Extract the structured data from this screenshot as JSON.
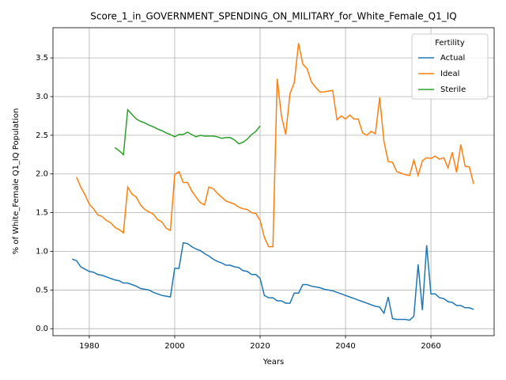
{
  "chart_data": {
    "type": "line",
    "title": "Score_1_in_GOVERNMENT_SPENDING_ON_MILITARY_for_White_Female_Q1_IQ",
    "xlabel": "Years",
    "ylabel": "% of White_Female Q1_IQ Population",
    "legend_title": "Fertility",
    "legend": "upper right",
    "grid": true,
    "xlim": [
      1971.5,
      2074.8
    ],
    "ylim": [
      -0.09,
      3.89
    ],
    "xticks": [
      1980,
      2000,
      2020,
      2040,
      2060
    ],
    "yticks": [
      {
        "value": 0,
        "label": "0.0"
      },
      0.5,
      {
        "value": 1,
        "label": "1.0"
      },
      1.5,
      {
        "value": 2,
        "label": "2.0"
      },
      2.5,
      {
        "value": 3,
        "label": "3.0"
      },
      3.5
    ],
    "x": [
      1976,
      1977,
      1978,
      1979,
      1980,
      1981,
      1982,
      1983,
      1984,
      1985,
      1986,
      1987,
      1988,
      1989,
      1990,
      1991,
      1992,
      1993,
      1994,
      1995,
      1996,
      1997,
      1998,
      1999,
      2000,
      2001,
      2002,
      2003,
      2004,
      2005,
      2006,
      2007,
      2008,
      2009,
      2010,
      2011,
      2012,
      2013,
      2014,
      2015,
      2016,
      2017,
      2018,
      2019,
      2020,
      2021,
      2022,
      2023,
      2024,
      2025,
      2026,
      2027,
      2028,
      2029,
      2030,
      2031,
      2032,
      2033,
      2034,
      2035,
      2036,
      2037,
      2038,
      2039,
      2040,
      2041,
      2042,
      2043,
      2044,
      2045,
      2046,
      2047,
      2048,
      2049,
      2050,
      2051,
      2052,
      2053,
      2054,
      2055,
      2056,
      2057,
      2058,
      2059,
      2060,
      2061,
      2062,
      2063,
      2064,
      2065,
      2066,
      2067,
      2068,
      2069,
      2070
    ],
    "series": [
      {
        "name": "Actual",
        "color": "#1f77b4",
        "values": [
          0.9,
          0.88,
          0.8,
          0.77,
          0.74,
          0.73,
          0.7,
          0.69,
          0.67,
          0.65,
          0.63,
          0.62,
          0.59,
          0.59,
          0.57,
          0.55,
          0.52,
          0.51,
          0.5,
          0.47,
          0.45,
          0.43,
          0.42,
          0.41,
          0.78,
          0.78,
          1.11,
          1.1,
          1.06,
          1.03,
          1.01,
          0.97,
          0.94,
          0.9,
          0.87,
          0.85,
          0.82,
          0.82,
          0.8,
          0.79,
          0.75,
          0.74,
          0.7,
          0.7,
          0.65,
          0.43,
          0.4,
          0.4,
          0.36,
          0.36,
          0.33,
          0.33,
          0.46,
          0.46,
          0.57,
          0.57,
          0.55,
          0.54,
          0.53,
          0.51,
          0.5,
          0.49,
          0.47,
          0.45,
          0.43,
          0.41,
          0.39,
          0.37,
          0.35,
          0.33,
          0.31,
          0.29,
          0.28,
          0.2,
          0.41,
          0.13,
          0.12,
          0.12,
          0.12,
          0.11,
          0.16,
          0.83,
          0.24,
          1.08,
          0.45,
          0.45,
          0.4,
          0.39,
          0.35,
          0.34,
          0.3,
          0.3,
          0.27,
          0.27,
          0.25
        ]
      },
      {
        "name": "Ideal",
        "color": "#ff7f0e",
        "values": [
          null,
          1.96,
          1.83,
          1.73,
          1.61,
          1.55,
          1.47,
          1.45,
          1.4,
          1.37,
          1.31,
          1.28,
          1.24,
          1.83,
          1.74,
          1.7,
          1.6,
          1.54,
          1.51,
          1.48,
          1.41,
          1.38,
          1.3,
          1.27,
          1.99,
          2.03,
          1.89,
          1.89,
          1.78,
          1.7,
          1.63,
          1.6,
          1.83,
          1.81,
          1.75,
          1.7,
          1.65,
          1.63,
          1.61,
          1.57,
          1.55,
          1.54,
          1.5,
          1.49,
          1.4,
          1.18,
          1.06,
          1.06,
          3.23,
          2.75,
          2.51,
          3.04,
          3.18,
          3.69,
          3.42,
          3.36,
          3.19,
          3.12,
          3.06,
          3.06,
          3.07,
          3.08,
          2.7,
          2.75,
          2.71,
          2.76,
          2.71,
          2.71,
          2.53,
          2.5,
          2.55,
          2.52,
          2.99,
          2.42,
          2.16,
          2.15,
          2.03,
          2.01,
          1.99,
          1.98,
          2.18,
          1.98,
          2.17,
          2.21,
          2.2,
          2.23,
          2.19,
          2.21,
          2.08,
          2.28,
          2.02,
          2.38,
          2.1,
          2.09,
          1.87
        ]
      },
      {
        "name": "Sterile",
        "color": "#2ca02c",
        "values": [
          null,
          null,
          null,
          null,
          null,
          null,
          null,
          null,
          null,
          null,
          2.34,
          2.3,
          2.25,
          2.83,
          2.77,
          2.71,
          2.68,
          2.66,
          2.63,
          2.61,
          2.58,
          2.56,
          2.53,
          2.51,
          2.48,
          2.51,
          2.51,
          2.54,
          2.51,
          2.48,
          2.5,
          2.49,
          2.49,
          2.49,
          2.48,
          2.46,
          2.47,
          2.47,
          2.44,
          2.39,
          2.41,
          2.45,
          2.51,
          2.55,
          2.62,
          null,
          null,
          null,
          null,
          null,
          null,
          null,
          null,
          null,
          null,
          null,
          null,
          null,
          null,
          null,
          null,
          null,
          null,
          null,
          null,
          null,
          null,
          null,
          null,
          null,
          null,
          null,
          null,
          null,
          null,
          null,
          null,
          null,
          null,
          null,
          null,
          null,
          null,
          null,
          null,
          null,
          null,
          null,
          null,
          null,
          null,
          null,
          null,
          null,
          null
        ]
      }
    ]
  }
}
